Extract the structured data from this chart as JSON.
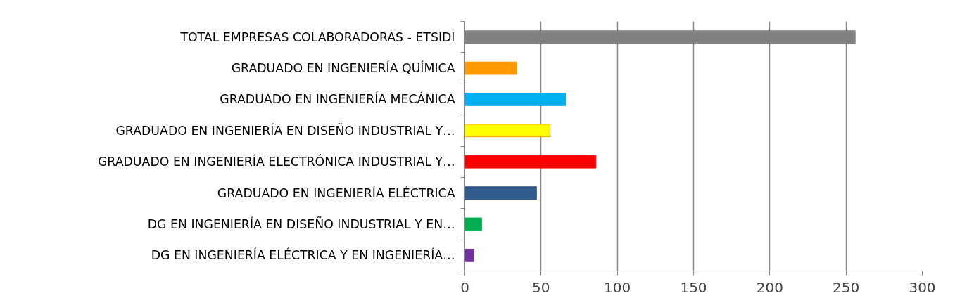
{
  "chart_data": {
    "type": "bar",
    "orientation": "horizontal",
    "categories": [
      "TOTAL EMPRESAS COLABORADORAS - ETSIDI",
      "GRADUADO EN INGENIERÍA QUÍMICA",
      "GRADUADO EN INGENIERÍA MECÁNICA",
      "GRADUADO EN INGENIERÍA EN DISEÑO INDUSTRIAL Y…",
      "GRADUADO EN INGENIERÍA ELECTRÓNICA INDUSTRIAL Y…",
      "GRADUADO EN INGENIERÍA ELÉCTRICA",
      "DG EN INGENIERÍA EN DISEÑO INDUSTRIAL Y EN…",
      "DG EN INGENIERÍA ELÉCTRICA Y EN INGENIERÍA…"
    ],
    "values": [
      256,
      34,
      66,
      56,
      86,
      47,
      11,
      6
    ],
    "colors": [
      "#808080",
      "#ff9900",
      "#00b0f0",
      "#ffff00",
      "#ff0000",
      "#335c8e",
      "#00b050",
      "#7030a0"
    ],
    "xlim": [
      0,
      300
    ],
    "xticks": [
      0,
      50,
      100,
      150,
      200,
      250,
      300
    ],
    "grid": "x"
  }
}
